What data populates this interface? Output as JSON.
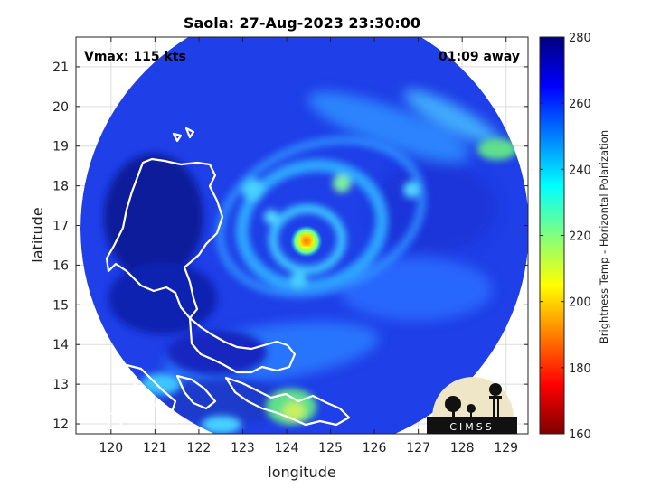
{
  "chart_data": {
    "type": "heatmap",
    "title": "Saola: 27-Aug-2023 23:30:00",
    "xlabel": "longitude",
    "ylabel": "latitude",
    "xlim": [
      119.2,
      129.5
    ],
    "ylim": [
      11.75,
      21.75
    ],
    "xticks": [
      "120",
      "121",
      "122",
      "123",
      "124",
      "125",
      "126",
      "127",
      "128",
      "129"
    ],
    "yticks": [
      "12",
      "13",
      "14",
      "15",
      "16",
      "17",
      "18",
      "19",
      "20",
      "21"
    ],
    "grid": true,
    "annotations": {
      "vmax": "Vmax: 115 kts",
      "time_away": "01:09 away"
    },
    "colorbar": {
      "label": "Brightness Temp - Horizontal Polarization",
      "range": [
        160,
        280
      ],
      "ticks": [
        "160",
        "180",
        "200",
        "220",
        "240",
        "260",
        "280"
      ],
      "colormap": "jet"
    },
    "storm_center": {
      "lon": 124.45,
      "lat": 16.6,
      "min_brightness_temp": 195
    },
    "swath": {
      "center_lon": 124.3,
      "center_lat": 16.9,
      "radius_deg": 5.4
    },
    "logo": "CIMSS"
  }
}
